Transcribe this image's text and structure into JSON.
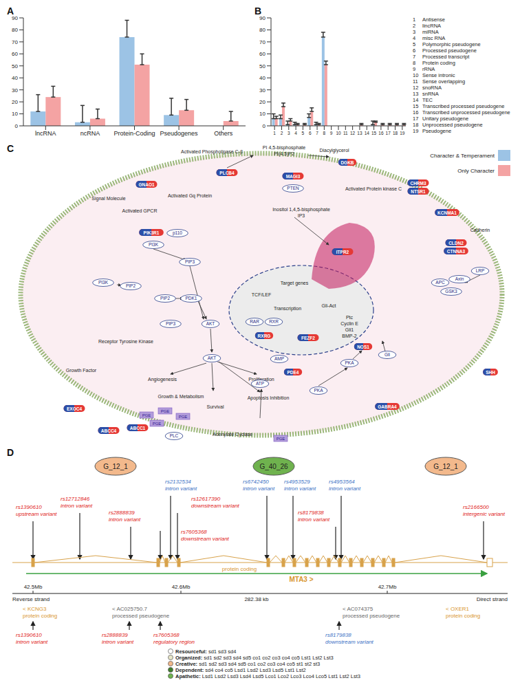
{
  "panels": [
    "A",
    "B",
    "C",
    "D"
  ],
  "chart_data": [
    {
      "type": "bar",
      "categories": [
        "lncRNA",
        "ncRNA",
        "Protein-Coding",
        "Pseudogenes",
        "Others"
      ],
      "series": [
        {
          "name": "Character & Temperament",
          "color": "#9cc3e5",
          "values": [
            12,
            3,
            74,
            9,
            0
          ],
          "errors": [
            14,
            14,
            14,
            14,
            13
          ]
        },
        {
          "name": "Only Character",
          "color": "#f4a3a3",
          "values": [
            24,
            6,
            51,
            13,
            4
          ],
          "errors": [
            9,
            8,
            9,
            9,
            8
          ]
        }
      ],
      "ylim": [
        0,
        90
      ],
      "yticks": [
        0,
        10,
        20,
        30,
        40,
        50,
        60,
        70,
        80,
        90
      ],
      "grid": false
    },
    {
      "type": "bar",
      "categories": [
        "1",
        "2",
        "3",
        "4",
        "5",
        "6",
        "7",
        "8",
        "9",
        "10",
        "11",
        "12",
        "13",
        "14",
        "15",
        "16",
        "17",
        "18",
        "19"
      ],
      "category_names": [
        "Antisense",
        "lincRNA",
        "miRNA",
        "misc RNA",
        "Polymorphic pseudogene",
        "Processed pseudogene",
        "Processed transcript",
        "Protein coding",
        "rRNA",
        "Sense intronic",
        "Sense overlapping",
        "snoRNA",
        "snRNA",
        "TEC",
        "Transcribed processed pseudogene",
        "Transcribed unprocessed pseudogene",
        "Unitary pseudogene",
        "Unprocessed pseudogene",
        "Pseudogene"
      ],
      "series": [
        {
          "name": "Character & Temperament",
          "color": "#9cc3e5",
          "values": [
            6,
            6,
            1,
            1,
            0,
            7,
            1,
            74,
            0,
            0,
            0,
            0,
            0,
            0,
            1,
            0,
            0,
            0,
            0
          ],
          "errors": [
            4,
            3,
            3,
            2,
            2,
            3,
            2,
            4,
            3,
            3,
            3,
            3,
            3,
            3,
            3,
            3,
            3,
            3,
            3
          ]
        },
        {
          "name": "Only Character",
          "color": "#f4a3a3",
          "values": [
            6,
            16,
            4,
            1,
            1,
            12,
            1,
            51,
            0,
            0,
            0,
            0,
            1,
            0,
            3,
            1,
            1,
            1,
            1
          ],
          "errors": [
            2,
            3,
            2,
            1,
            1,
            3,
            1,
            3,
            1,
            1,
            1,
            1,
            1,
            1,
            1,
            1,
            1,
            1,
            1
          ]
        }
      ],
      "ylim": [
        0,
        90
      ],
      "yticks": [
        0,
        10,
        20,
        30,
        40,
        50,
        60,
        70,
        80,
        90
      ],
      "grid": false
    }
  ],
  "pathway": {
    "genes": [
      "GNAO1",
      "PLCB4",
      "DGKB",
      "MAGI3",
      "CHRM3",
      "NTSR1",
      "KCNMA1",
      "CLDN2",
      "CTNNA3",
      "PIK3R1",
      "ITPR2",
      "EXOC4",
      "ABCC4",
      "ABCC1",
      "PDE4",
      "RXRG",
      "FEZF2",
      "NOS1",
      "SHH",
      "GABRA4"
    ],
    "labels": [
      "Signal Molecule",
      "Activated GPCR",
      "Activated Gq Protein",
      "Activated Phospholipase C-β",
      "PI 4,5-bisphosphate",
      "PI(4,5)P2",
      "Diacylglycerol",
      "PTEN",
      "Inositol 1,4,5-bisphosphate",
      "IP3",
      "Activated Protein kinase C",
      "Cadherin",
      "LRP",
      "APC",
      "Axin",
      "GSK3",
      "p110",
      "PI3K",
      "PIP3",
      "PI3K",
      "PIP2",
      "PIP2",
      "PDK1",
      "PIP3",
      "AKT",
      "Receptor Tyrosine Kinase",
      "Growth Factor",
      "AKT",
      "Angiogenesis",
      "Proliferation",
      "Growth & Metabolism",
      "Survival",
      "Apoptosis Inhibition",
      "PGE",
      "PGE",
      "PGE",
      "PGE",
      "PGE",
      "PLC",
      "Adenylate Cyclase",
      "AMP",
      "ATP",
      "PKA",
      "PKA",
      "Gli",
      "Target genes",
      "TCF/LEF",
      "Transcription",
      "RAR",
      "RXR",
      "Gli-Act",
      "Ptc",
      "Cyclin E",
      "Gli1",
      "BMP-2"
    ]
  },
  "gene_diagram": {
    "groups": [
      {
        "label": "G_12_1",
        "color": "#f3b98c"
      },
      {
        "label": "G_40_26",
        "color": "#6fb24e"
      },
      {
        "label": "G_12_1",
        "color": "#f3b98c"
      }
    ],
    "snps": [
      {
        "id": "rs1390610",
        "consequence": "upstream variant",
        "color": "#e02020"
      },
      {
        "id": "rs12712846",
        "consequence": "intron variant",
        "color": "#e02020"
      },
      {
        "id": "rs2888839",
        "consequence": "intron variant",
        "color": "#e02020"
      },
      {
        "id": "rs7605368",
        "consequence": "downstream variant",
        "color": "#e02020"
      },
      {
        "id": "rs2132534",
        "consequence": "intron variant",
        "color": "#3a6fc4"
      },
      {
        "id": "rs12617390",
        "consequence": "downstream variant",
        "color": "#e02020"
      },
      {
        "id": "rs6742450",
        "consequence": "intron variant",
        "color": "#3a6fc4"
      },
      {
        "id": "rs4953529",
        "consequence": "intron variant",
        "color": "#3a6fc4"
      },
      {
        "id": "rs4953564",
        "consequence": "intron variant",
        "color": "#3a6fc4"
      },
      {
        "id": "rs8179838",
        "consequence": "intron variant",
        "color": "#e02020"
      },
      {
        "id": "rs2166500",
        "consequence": "intergenic variant",
        "color": "#e02020"
      }
    ],
    "transcript": {
      "biotype": "protein coding",
      "name": "MTA3 >"
    },
    "scale": {
      "ticks": [
        "42.5Mb",
        "42.6Mb",
        "42.7Mb"
      ],
      "left": "Reverse strand",
      "span": "282.38 kb",
      "right": "Direct strand"
    },
    "genes": [
      {
        "name": "< KCNG3",
        "biotype": "protein coding",
        "color": "#d8952e"
      },
      {
        "name": "< AC025750.7",
        "biotype": "processed pseudogene",
        "color": "#666666"
      },
      {
        "name": "< AC074375",
        "biotype": "processed pseudogene",
        "color": "#666666"
      },
      {
        "name": "< OXER1",
        "biotype": "protein coding",
        "color": "#d8952e"
      }
    ],
    "other_snps": [
      {
        "id": "rs1390610",
        "consequence": "intron variant",
        "color": "#e02020"
      },
      {
        "id": "rs2888839",
        "consequence": "intron variant",
        "color": "#e02020"
      },
      {
        "id": "rs7605368",
        "consequence": "regulatory region",
        "color": "#e02020"
      },
      {
        "id": "rs8179838",
        "consequence": "downstream variant",
        "color": "#3a6fc4"
      }
    ],
    "legend": [
      {
        "label": "Resourceful:",
        "text": "sd1 sd3 sd4",
        "color": "#ffffff"
      },
      {
        "label": "Organized:",
        "text": "sd1 sd2 sd3 sd4 sd5 co1 co2 co3 co4 co5 Lst1 Lst2 Lst3",
        "color": "#e8e6c8"
      },
      {
        "label": "Creative:",
        "text": "sd1 sd2 sd3 sd4 sd5 co1 co2 co3 co4 co5 st1 st2 st3",
        "color": "#f3b98c"
      },
      {
        "label": "Dependent:",
        "text": "sd4 co4 co5 Lsd1 Lsd2 Lsd3 Lsd5 Lst1 Lst2",
        "color": "#3f7d2c"
      },
      {
        "label": "Apathetic:",
        "text": "Lsd1 Lsd2 Lsd3 Lsd4 Lsd5 Lco1 Lco2 Lco3 Lco4 Lco5 Lst1 Lst2 Lst3",
        "color": "#6fb24e"
      }
    ]
  }
}
